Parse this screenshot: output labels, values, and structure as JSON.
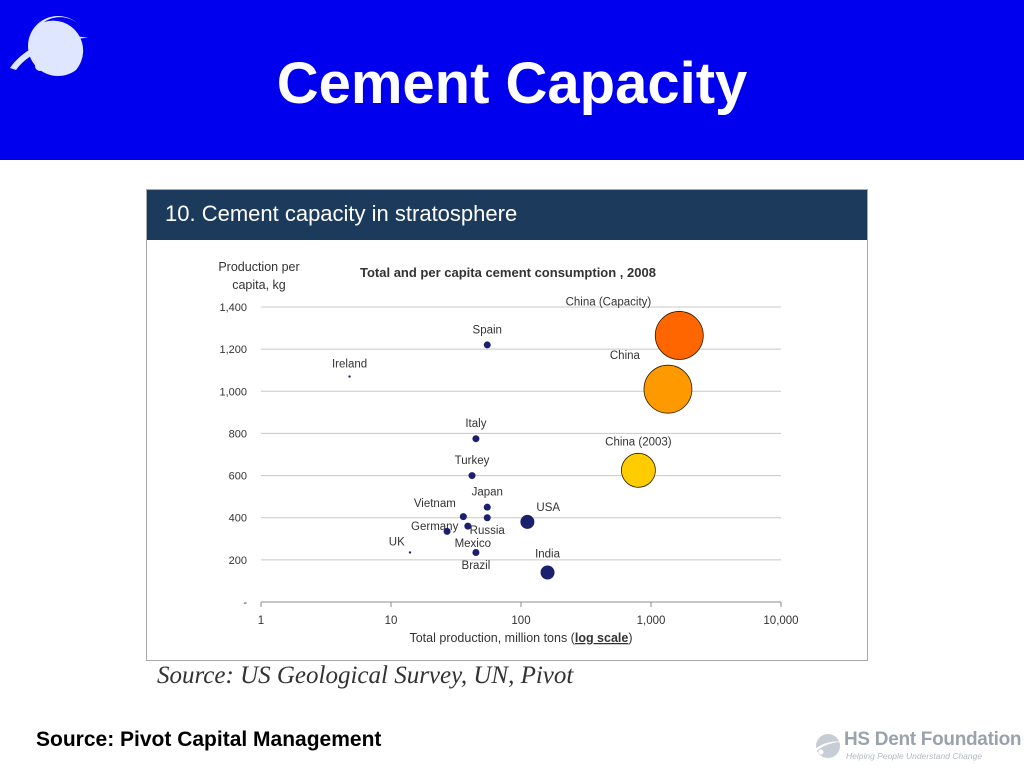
{
  "slide": {
    "title": "Cement Capacity",
    "colors": {
      "header_bg": "#0000ee",
      "title": "#ffffff",
      "figure_banner_bg": "#1c3a5c"
    }
  },
  "figure": {
    "banner_title": "10. Cement capacity in stratosphere",
    "source_note": "Source: US Geological Survey, UN, Pivot"
  },
  "footer": {
    "source": "Source: Pivot Capital Management",
    "logo_name": "HS Dent Foundation",
    "logo_tagline": "Helping People Understand Change"
  },
  "chart_data": {
    "type": "scatter",
    "title": "Total and per capita cement consumption , 2008",
    "ylabel_lines": [
      "Production per",
      "capita, kg"
    ],
    "xlabel_prefix": "Total production, million tons (",
    "xlabel_emph": "log scale",
    "xlabel_suffix": ")",
    "x_scale": "log",
    "xlim": [
      1,
      10000
    ],
    "ylim": [
      0,
      1400
    ],
    "x_ticks": [
      {
        "value": 1,
        "label": "1"
      },
      {
        "value": 10,
        "label": "10"
      },
      {
        "value": 100,
        "label": "100"
      },
      {
        "value": 1000,
        "label": "1,000"
      },
      {
        "value": 10000,
        "label": "10,000"
      }
    ],
    "y_ticks": [
      {
        "value": 0,
        "label": "-"
      },
      {
        "value": 200,
        "label": "200"
      },
      {
        "value": 400,
        "label": "400"
      },
      {
        "value": 600,
        "label": "600"
      },
      {
        "value": 800,
        "label": "800"
      },
      {
        "value": 1000,
        "label": "1,000"
      },
      {
        "value": 1200,
        "label": "1,200"
      },
      {
        "value": 1400,
        "label": "1,400"
      }
    ],
    "grid": "horizontal",
    "points": [
      {
        "label": "Ireland",
        "x": 4.8,
        "y": 1070,
        "size": "dot",
        "color": "#1a1f6e",
        "label_pos": "above"
      },
      {
        "label": "Spain",
        "x": 55,
        "y": 1220,
        "size": "small",
        "color": "#1a1f6e",
        "label_pos": "above"
      },
      {
        "label": "Italy",
        "x": 45,
        "y": 775,
        "size": "small",
        "color": "#1a1f6e",
        "label_pos": "above"
      },
      {
        "label": "Turkey",
        "x": 42,
        "y": 600,
        "size": "small",
        "color": "#1a1f6e",
        "label_pos": "above"
      },
      {
        "label": "Japan",
        "x": 55,
        "y": 450,
        "size": "small",
        "color": "#1a1f6e",
        "label_pos": "above"
      },
      {
        "label": "Vietnam",
        "x": 36,
        "y": 405,
        "size": "small",
        "color": "#1a1f6e",
        "label_pos": "above-left"
      },
      {
        "label": "Russia",
        "x": 55,
        "y": 400,
        "size": "small",
        "color": "#1a1f6e",
        "label_pos": "below"
      },
      {
        "label": "Germany",
        "x": 39,
        "y": 360,
        "size": "small",
        "color": "#1a1f6e",
        "label_pos": "left"
      },
      {
        "label": "Mexico",
        "x": 27,
        "y": 335,
        "size": "small",
        "color": "#1a1f6e",
        "label_pos": "below-right"
      },
      {
        "label": "UK",
        "x": 14,
        "y": 235,
        "size": "dot",
        "color": "#1a1f6e",
        "label_pos": "above-left"
      },
      {
        "label": "Brazil",
        "x": 45,
        "y": 235,
        "size": "small",
        "color": "#1a1f6e",
        "label_pos": "below"
      },
      {
        "label": "USA",
        "x": 112,
        "y": 380,
        "size": "medium",
        "color": "#1a1f6e",
        "label_pos": "above-right"
      },
      {
        "label": "India",
        "x": 160,
        "y": 140,
        "size": "medium",
        "color": "#1a1f6e",
        "label_pos": "above"
      },
      {
        "label": "China (2003)",
        "x": 800,
        "y": 625,
        "size": "large",
        "color": "#ffcc00",
        "label_pos": "above"
      },
      {
        "label": "China",
        "x": 1350,
        "y": 1010,
        "size": "xlarge",
        "color": "#ff9900",
        "label_pos": "above-left"
      },
      {
        "label": "China (Capacity)",
        "x": 1650,
        "y": 1265,
        "size": "xlarge",
        "color": "#ff6600",
        "label_pos": "above-left"
      }
    ]
  }
}
